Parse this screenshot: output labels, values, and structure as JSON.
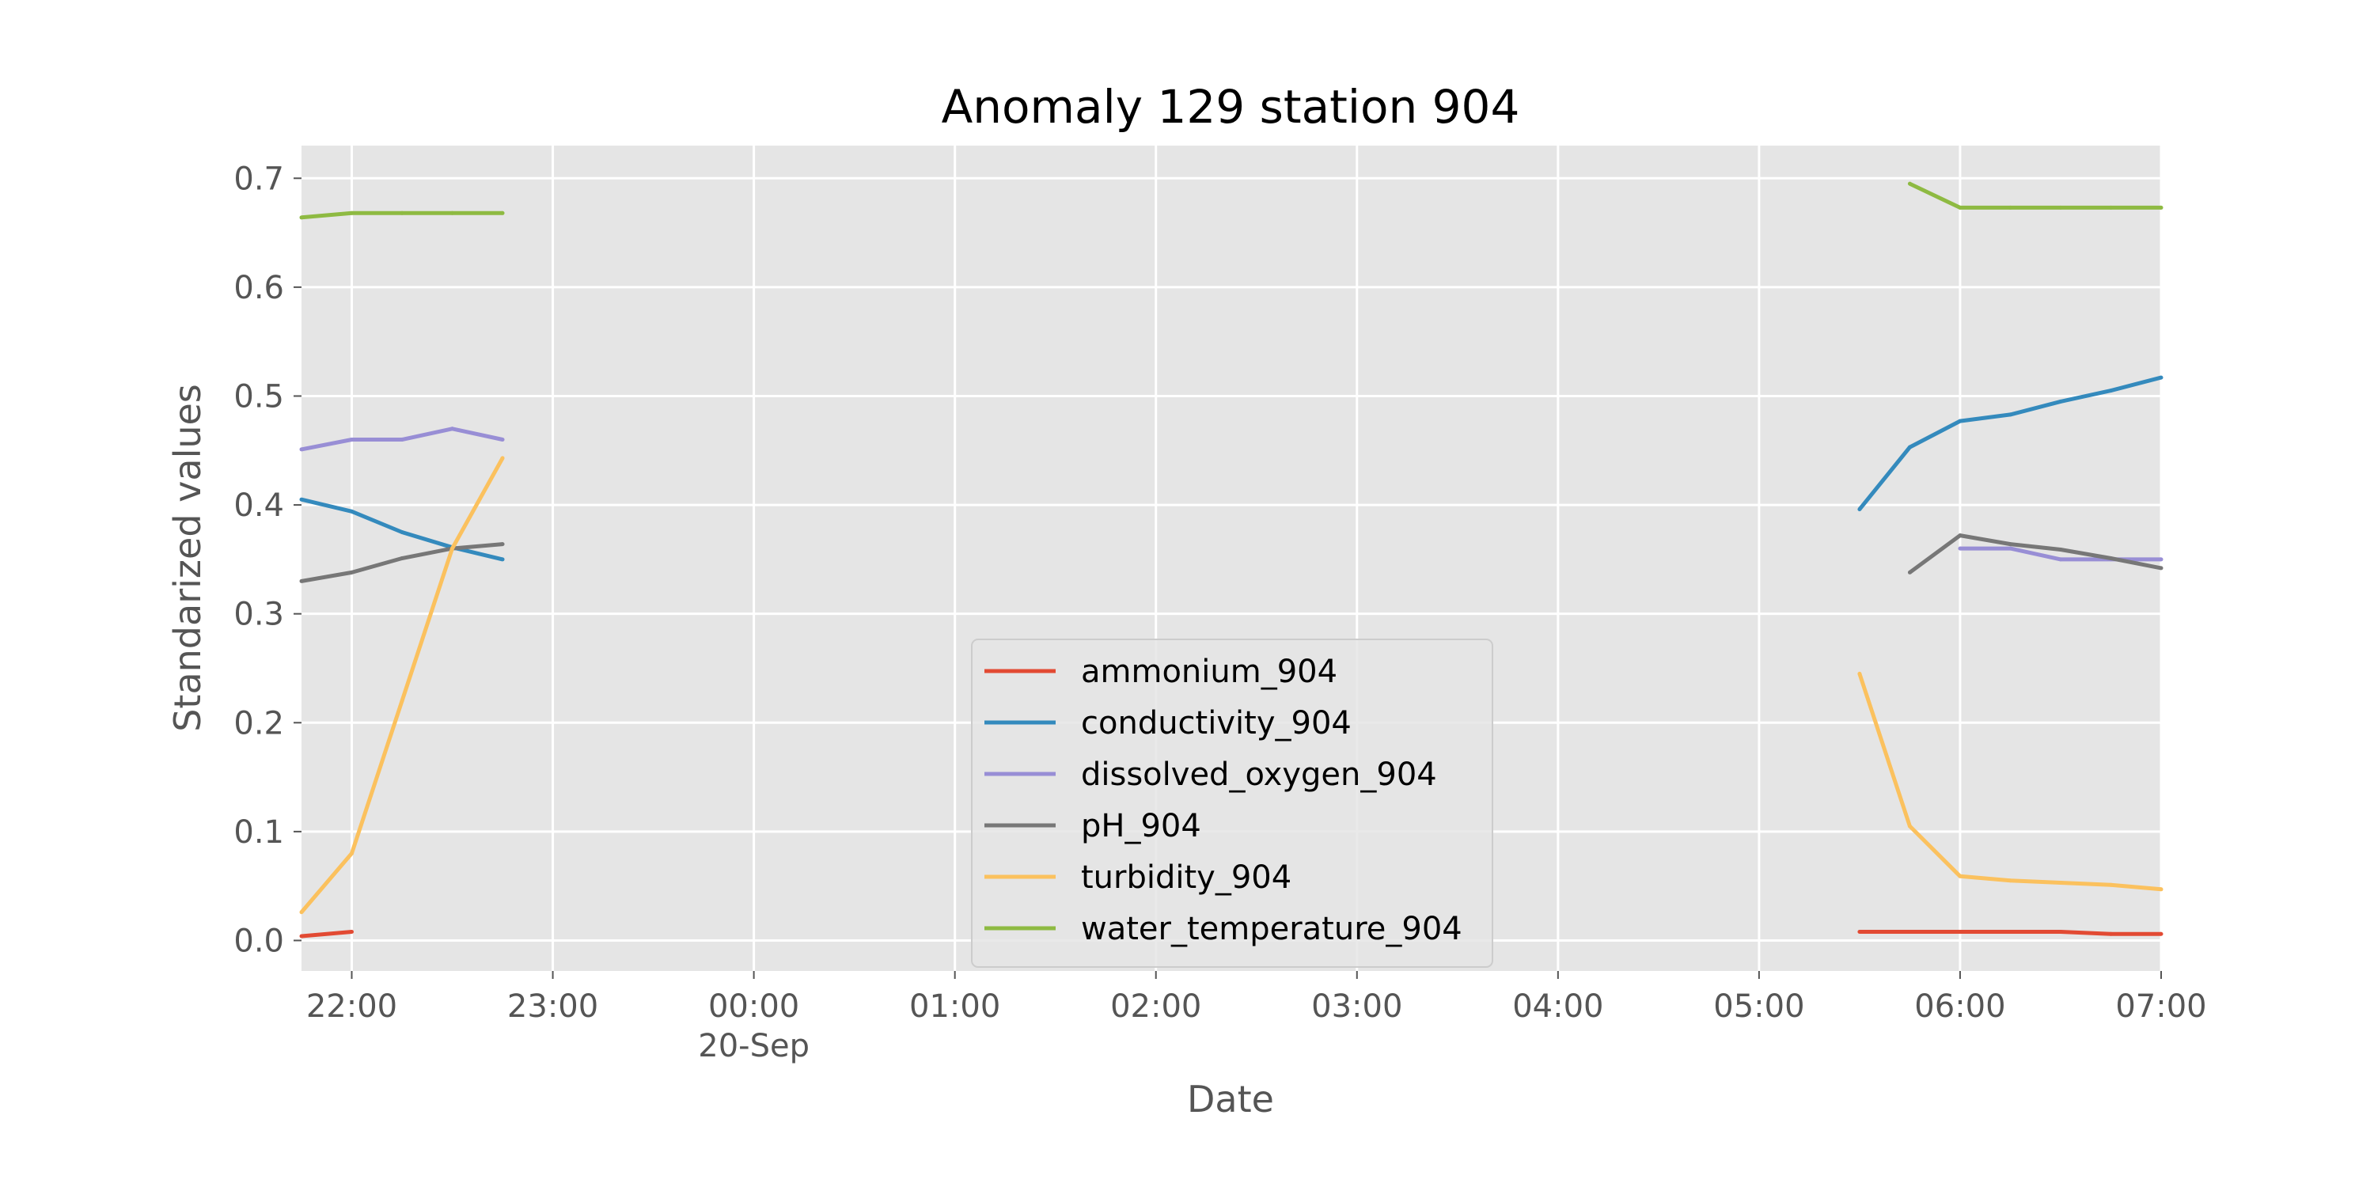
{
  "chart_data": {
    "type": "line",
    "title": "Anomaly 129 station 904",
    "xlabel": "Date",
    "ylabel": "Standarized values",
    "xlim": [
      "2023-09-19 21:45",
      "2023-09-20 07:00"
    ],
    "ylim": [
      -0.028,
      0.73
    ],
    "x_ticks": [
      {
        "value": "2023-09-19 22:00",
        "label": "22:00",
        "sublabel": ""
      },
      {
        "value": "2023-09-19 23:00",
        "label": "23:00",
        "sublabel": ""
      },
      {
        "value": "2023-09-20 00:00",
        "label": "00:00",
        "sublabel": "20-Sep"
      },
      {
        "value": "2023-09-20 01:00",
        "label": "01:00",
        "sublabel": ""
      },
      {
        "value": "2023-09-20 02:00",
        "label": "02:00",
        "sublabel": ""
      },
      {
        "value": "2023-09-20 03:00",
        "label": "03:00",
        "sublabel": ""
      },
      {
        "value": "2023-09-20 04:00",
        "label": "04:00",
        "sublabel": ""
      },
      {
        "value": "2023-09-20 05:00",
        "label": "05:00",
        "sublabel": ""
      },
      {
        "value": "2023-09-20 06:00",
        "label": "06:00",
        "sublabel": ""
      },
      {
        "value": "2023-09-20 07:00",
        "label": "07:00",
        "sublabel": ""
      }
    ],
    "y_ticks": [
      0.0,
      0.1,
      0.2,
      0.3,
      0.4,
      0.5,
      0.6,
      0.7
    ],
    "y_tick_labels": [
      "0.0",
      "0.1",
      "0.2",
      "0.3",
      "0.4",
      "0.5",
      "0.6",
      "0.7"
    ],
    "grid": true,
    "legend_position": "lower-center",
    "series": [
      {
        "name": "ammonium_904",
        "color": "#E24A33",
        "points": [
          {
            "x": "2023-09-19 21:45",
            "y": 0.004
          },
          {
            "x": "2023-09-19 22:00",
            "y": 0.008
          },
          {
            "x": "2023-09-20 05:30",
            "y": 0.008
          },
          {
            "x": "2023-09-20 05:45",
            "y": 0.008
          },
          {
            "x": "2023-09-20 06:00",
            "y": 0.008
          },
          {
            "x": "2023-09-20 06:15",
            "y": 0.008
          },
          {
            "x": "2023-09-20 06:30",
            "y": 0.008
          },
          {
            "x": "2023-09-20 06:45",
            "y": 0.006
          },
          {
            "x": "2023-09-20 07:00",
            "y": 0.006
          }
        ]
      },
      {
        "name": "conductivity_904",
        "color": "#348ABD",
        "points": [
          {
            "x": "2023-09-19 21:45",
            "y": 0.405
          },
          {
            "x": "2023-09-19 22:00",
            "y": 0.394
          },
          {
            "x": "2023-09-19 22:15",
            "y": 0.375
          },
          {
            "x": "2023-09-19 22:30",
            "y": 0.361
          },
          {
            "x": "2023-09-19 22:45",
            "y": 0.35
          },
          {
            "x": "2023-09-20 05:30",
            "y": 0.396
          },
          {
            "x": "2023-09-20 05:45",
            "y": 0.453
          },
          {
            "x": "2023-09-20 06:00",
            "y": 0.477
          },
          {
            "x": "2023-09-20 06:15",
            "y": 0.483
          },
          {
            "x": "2023-09-20 06:30",
            "y": 0.495
          },
          {
            "x": "2023-09-20 06:45",
            "y": 0.505
          },
          {
            "x": "2023-09-20 07:00",
            "y": 0.517
          }
        ]
      },
      {
        "name": "dissolved_oxygen_904",
        "color": "#988ED5",
        "points": [
          {
            "x": "2023-09-19 21:45",
            "y": 0.451
          },
          {
            "x": "2023-09-19 22:00",
            "y": 0.46
          },
          {
            "x": "2023-09-19 22:15",
            "y": 0.46
          },
          {
            "x": "2023-09-19 22:30",
            "y": 0.47
          },
          {
            "x": "2023-09-19 22:45",
            "y": 0.46
          },
          {
            "x": "2023-09-20 06:00",
            "y": 0.36
          },
          {
            "x": "2023-09-20 06:15",
            "y": 0.36
          },
          {
            "x": "2023-09-20 06:30",
            "y": 0.35
          },
          {
            "x": "2023-09-20 06:45",
            "y": 0.35
          },
          {
            "x": "2023-09-20 07:00",
            "y": 0.35
          }
        ]
      },
      {
        "name": "pH_904",
        "color": "#777777",
        "points": [
          {
            "x": "2023-09-19 21:45",
            "y": 0.33
          },
          {
            "x": "2023-09-19 22:00",
            "y": 0.338
          },
          {
            "x": "2023-09-19 22:15",
            "y": 0.351
          },
          {
            "x": "2023-09-19 22:30",
            "y": 0.36
          },
          {
            "x": "2023-09-19 22:45",
            "y": 0.364
          },
          {
            "x": "2023-09-20 05:45",
            "y": 0.338
          },
          {
            "x": "2023-09-20 06:00",
            "y": 0.372
          },
          {
            "x": "2023-09-20 06:15",
            "y": 0.364
          },
          {
            "x": "2023-09-20 06:30",
            "y": 0.359
          },
          {
            "x": "2023-09-20 06:45",
            "y": 0.351
          },
          {
            "x": "2023-09-20 07:00",
            "y": 0.342
          }
        ]
      },
      {
        "name": "turbidity_904",
        "color": "#FBC15E",
        "points": [
          {
            "x": "2023-09-19 21:45",
            "y": 0.026
          },
          {
            "x": "2023-09-19 22:00",
            "y": 0.08
          },
          {
            "x": "2023-09-19 22:15",
            "y": 0.22
          },
          {
            "x": "2023-09-19 22:30",
            "y": 0.36
          },
          {
            "x": "2023-09-19 22:45",
            "y": 0.443
          },
          {
            "x": "2023-09-20 05:30",
            "y": 0.245
          },
          {
            "x": "2023-09-20 05:45",
            "y": 0.105
          },
          {
            "x": "2023-09-20 06:00",
            "y": 0.059
          },
          {
            "x": "2023-09-20 06:15",
            "y": 0.055
          },
          {
            "x": "2023-09-20 06:30",
            "y": 0.053
          },
          {
            "x": "2023-09-20 06:45",
            "y": 0.051
          },
          {
            "x": "2023-09-20 07:00",
            "y": 0.047
          }
        ]
      },
      {
        "name": "water_temperature_904",
        "color": "#8EBA42",
        "points": [
          {
            "x": "2023-09-19 21:45",
            "y": 0.664
          },
          {
            "x": "2023-09-19 22:00",
            "y": 0.668
          },
          {
            "x": "2023-09-19 22:15",
            "y": 0.668
          },
          {
            "x": "2023-09-19 22:30",
            "y": 0.668
          },
          {
            "x": "2023-09-19 22:45",
            "y": 0.668
          },
          {
            "x": "2023-09-20 05:45",
            "y": 0.695
          },
          {
            "x": "2023-09-20 06:00",
            "y": 0.673
          },
          {
            "x": "2023-09-20 06:15",
            "y": 0.673
          },
          {
            "x": "2023-09-20 06:30",
            "y": 0.673
          },
          {
            "x": "2023-09-20 06:45",
            "y": 0.673
          },
          {
            "x": "2023-09-20 07:00",
            "y": 0.673
          }
        ]
      }
    ]
  }
}
